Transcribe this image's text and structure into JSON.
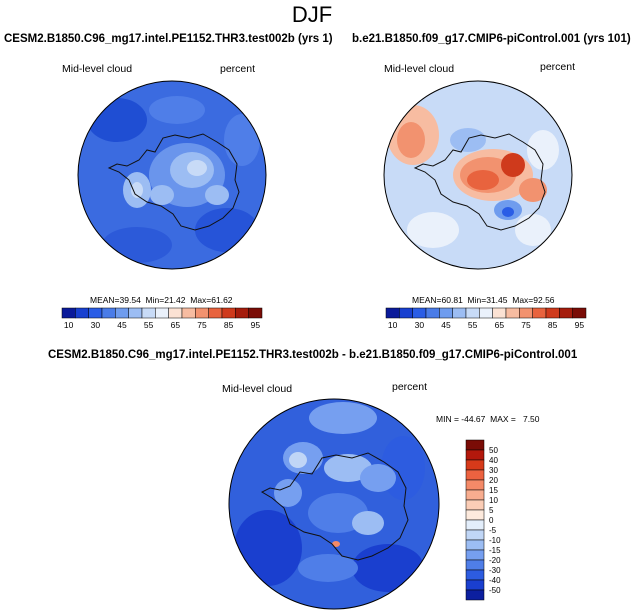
{
  "figure": {
    "season": "DJF"
  },
  "panels": [
    {
      "title": "CESM2.B1850.C96_mg17.intel.PE1152.THR3.test002b (yrs 1)",
      "variable": "Mid-level cloud",
      "units": "percent",
      "stats": {
        "mean_label": "MEAN=",
        "mean": "39.54",
        "min_label": "Min=",
        "min": "21.42",
        "max_label": "Max=",
        "max": "61.62"
      },
      "colorbar": {
        "levels": [
          "10",
          "30",
          "45",
          "55",
          "65",
          "75",
          "85",
          "95"
        ],
        "colors": [
          "#0a1a9a",
          "#1840d0",
          "#2a5de6",
          "#4a7ce8",
          "#6f9cee",
          "#9cbdf3",
          "#c8dbf7",
          "#eaf1fb",
          "#fbe2d4",
          "#f7bca1",
          "#f2926f",
          "#e8633e",
          "#cf3a1c",
          "#a51c0c",
          "#7a0c06"
        ]
      }
    },
    {
      "title": "b.e21.B1850.f09_g17.CMIP6-piControl.001 (yrs 101)",
      "variable": "Mid-level cloud",
      "units": "percent",
      "stats": {
        "mean_label": "MEAN=",
        "mean": "60.81",
        "min_label": "Min=",
        "min": "31.45",
        "max_label": "Max=",
        "max": "92.56"
      },
      "colorbar": {
        "levels": [
          "10",
          "30",
          "45",
          "55",
          "65",
          "75",
          "85",
          "95"
        ],
        "colors": [
          "#0a1a9a",
          "#1840d0",
          "#2a5de6",
          "#4a7ce8",
          "#6f9cee",
          "#9cbdf3",
          "#c8dbf7",
          "#eaf1fb",
          "#fbe2d4",
          "#f7bca1",
          "#f2926f",
          "#e8633e",
          "#cf3a1c",
          "#a51c0c",
          "#7a0c06"
        ]
      }
    },
    {
      "title": "CESM2.B1850.C96_mg17.intel.PE1152.THR3.test002b - b.e21.B1850.f09_g17.CMIP6-piControl.001",
      "variable": "Mid-level cloud",
      "units": "percent",
      "stats": {
        "min_label": "MIN =",
        "min": "-44.67",
        "max_label": "MAX =",
        "max": "7.50"
      },
      "colorbar": {
        "levels": [
          "50",
          "40",
          "30",
          "20",
          "15",
          "10",
          "5",
          "0",
          "-5",
          "-10",
          "-15",
          "-20",
          "-30",
          "-40",
          "-50"
        ],
        "colors": [
          "#7a0c06",
          "#b3180c",
          "#d63a1a",
          "#ec6240",
          "#f48a68",
          "#f8ad8f",
          "#fbcdb6",
          "#fdeadd",
          "#e3eefb",
          "#c0d6f6",
          "#9cbdf3",
          "#769ff0",
          "#4f7ee8",
          "#2d5ce0",
          "#1a3fcf",
          "#0c1f9f"
        ]
      }
    }
  ]
}
